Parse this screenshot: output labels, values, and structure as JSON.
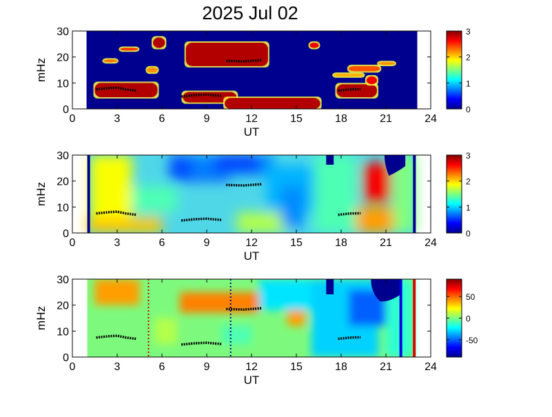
{
  "title": "2025 Jul 02",
  "chart_data": [
    {
      "type": "heatmap",
      "panel": "top",
      "xlabel": "UT",
      "ylabel": "mHz",
      "xlim": [
        0,
        24
      ],
      "ylim": [
        0,
        30
      ],
      "xticks": [
        0,
        3,
        6,
        9,
        12,
        15,
        18,
        21,
        24
      ],
      "yticks": [
        0,
        10,
        20,
        30
      ],
      "data_extent_x": [
        0.95,
        23.1
      ],
      "background_color": "#00008f",
      "colorbar": {
        "min": 0,
        "max": 3,
        "ticks": [
          0,
          1,
          2,
          3
        ]
      },
      "blobs": [
        {
          "x0": 1.5,
          "x1": 5.7,
          "y0": 4.5,
          "y1": 10.0,
          "level": 3
        },
        {
          "x0": 7.4,
          "x1": 11.0,
          "y0": 2.5,
          "y1": 6.5,
          "level": 3
        },
        {
          "x0": 10.2,
          "x1": 16.6,
          "y0": 0.0,
          "y1": 4.2,
          "level": 3
        },
        {
          "x0": 7.6,
          "x1": 13.1,
          "y0": 16.5,
          "y1": 25.5,
          "level": 3
        },
        {
          "x0": 5.4,
          "x1": 6.2,
          "y0": 23.5,
          "y1": 27.5,
          "level": 3
        },
        {
          "x0": 15.9,
          "x1": 16.5,
          "y0": 23.5,
          "y1": 25.5,
          "level": 2.8
        },
        {
          "x0": 17.7,
          "x1": 20.4,
          "y0": 4.5,
          "y1": 9.5,
          "level": 3
        },
        {
          "x0": 19.7,
          "x1": 20.4,
          "y0": 9.5,
          "y1": 12.5,
          "level": 2.8
        },
        {
          "x0": 17.5,
          "x1": 19.5,
          "y0": 12.5,
          "y1": 13.5,
          "level": 2.2
        },
        {
          "x0": 18.5,
          "x1": 20.6,
          "y0": 14.5,
          "y1": 16.5,
          "level": 2.5
        },
        {
          "x0": 3.2,
          "x1": 4.4,
          "y0": 22.5,
          "y1": 23.5,
          "level": 2.6
        },
        {
          "x0": 2.1,
          "x1": 3.0,
          "y0": 18.0,
          "y1": 19.0,
          "level": 2.4
        },
        {
          "x0": 5.0,
          "x1": 5.7,
          "y0": 14.0,
          "y1": 16.0,
          "level": 2.3
        },
        {
          "x0": 20.5,
          "x1": 21.6,
          "y0": 17.0,
          "y1": 18.0,
          "level": 2.3
        }
      ],
      "tracks": [
        {
          "x": [
            1.6,
            2.4,
            3.0,
            3.6,
            4.3
          ],
          "y": [
            7.5,
            8.0,
            8.2,
            7.5,
            7.0
          ]
        },
        {
          "x": [
            7.3,
            8.2,
            9.0,
            10.0
          ],
          "y": [
            4.8,
            5.3,
            5.5,
            5.0
          ]
        },
        {
          "x": [
            10.3,
            11.5,
            12.7
          ],
          "y": [
            18.5,
            18.3,
            18.8
          ]
        },
        {
          "x": [
            17.8,
            18.6,
            19.3
          ],
          "y": [
            7.0,
            7.5,
            7.6
          ]
        }
      ]
    },
    {
      "type": "heatmap",
      "panel": "middle",
      "xlabel": "UT",
      "ylabel": "mHz",
      "xlim": [
        0,
        24
      ],
      "ylim": [
        0,
        30
      ],
      "xticks": [
        0,
        3,
        6,
        9,
        12,
        15,
        18,
        21,
        24
      ],
      "yticks": [
        0,
        10,
        20,
        30
      ],
      "data_extent_x": [
        1.0,
        23.0
      ],
      "colorbar": {
        "min": 0,
        "max": 3,
        "ticks": [
          0,
          1,
          2,
          3
        ]
      },
      "tracks": [
        {
          "x": [
            1.6,
            2.4,
            3.0,
            3.6,
            4.3
          ],
          "y": [
            7.5,
            8.0,
            8.2,
            7.5,
            7.0
          ]
        },
        {
          "x": [
            7.3,
            8.2,
            9.0,
            10.0
          ],
          "y": [
            4.8,
            5.3,
            5.5,
            5.0
          ]
        },
        {
          "x": [
            10.3,
            11.5,
            12.7
          ],
          "y": [
            18.5,
            18.3,
            18.8
          ]
        },
        {
          "x": [
            17.8,
            18.6,
            19.3
          ],
          "y": [
            7.0,
            7.5,
            7.6
          ]
        }
      ]
    },
    {
      "type": "heatmap",
      "panel": "bottom",
      "xlabel": "UT",
      "ylabel": "mHz",
      "xlim": [
        0,
        24
      ],
      "ylim": [
        0,
        30
      ],
      "xticks": [
        0,
        3,
        6,
        9,
        12,
        15,
        18,
        21,
        24
      ],
      "yticks": [
        0,
        10,
        20,
        30
      ],
      "data_extent_x": [
        1.0,
        23.0
      ],
      "colorbar": {
        "min": -90,
        "max": 90,
        "ticks": [
          -50,
          0,
          50
        ]
      },
      "vertical_markers": [
        {
          "x": 5.1,
          "style": "dotted",
          "color": "#c00000"
        },
        {
          "x": 10.6,
          "style": "dotted",
          "color": "#000080"
        },
        {
          "x": 22.0,
          "style": "solid",
          "color": "#0000e0"
        },
        {
          "x": 22.9,
          "style": "solid",
          "color": "#e00000"
        }
      ],
      "tracks": [
        {
          "x": [
            1.6,
            2.4,
            3.0,
            3.6,
            4.3
          ],
          "y": [
            7.5,
            8.0,
            8.2,
            7.5,
            7.0
          ]
        },
        {
          "x": [
            7.3,
            8.2,
            9.0,
            10.0
          ],
          "y": [
            4.8,
            5.3,
            5.5,
            5.0
          ]
        },
        {
          "x": [
            10.3,
            11.5,
            12.7
          ],
          "y": [
            18.5,
            18.3,
            18.8
          ]
        },
        {
          "x": [
            17.8,
            18.6,
            19.3
          ],
          "y": [
            7.0,
            7.5,
            7.6
          ]
        }
      ]
    }
  ]
}
